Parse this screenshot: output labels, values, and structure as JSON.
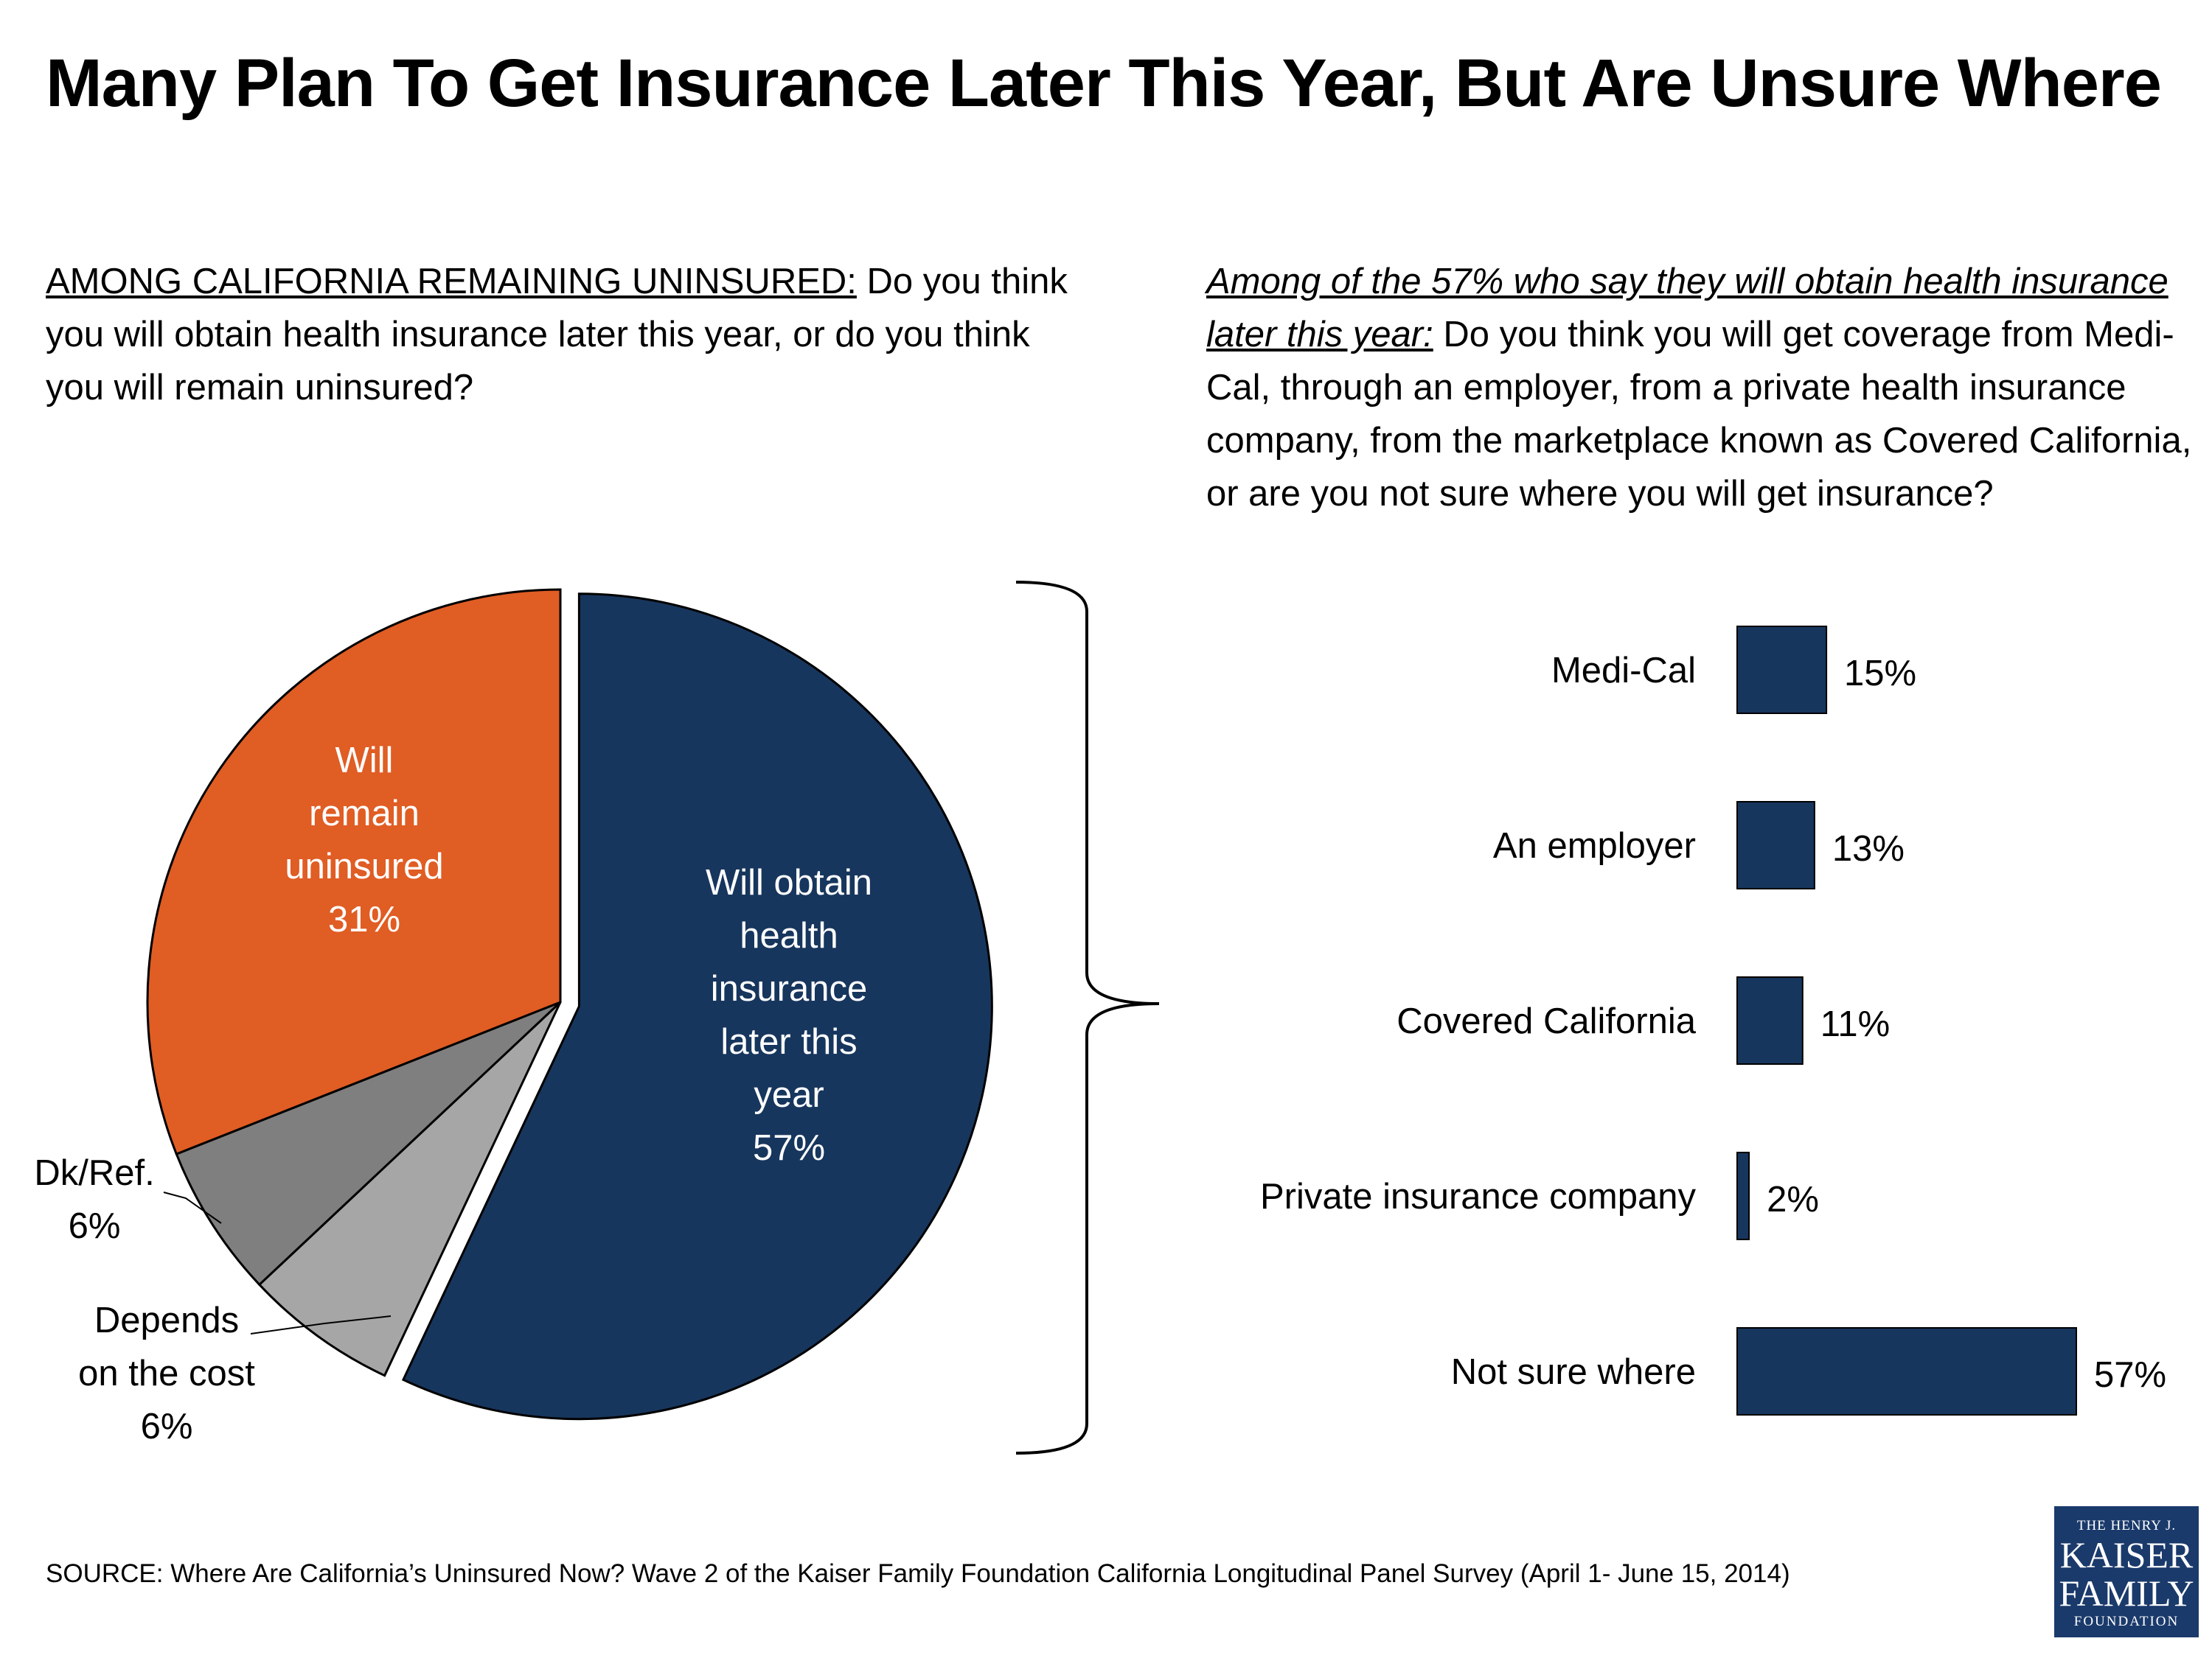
{
  "title": "Many Plan To Get Insurance Later This Year, But Are Unsure Where",
  "left_question": {
    "lead": "AMONG CALIFORNIA REMAINING UNINSURED:",
    "text": " Do you think you will obtain health insurance later this year, or do you think you will remain uninsured?"
  },
  "right_question": {
    "lead": "Among of the 57% who say they will obtain health insurance later this year:",
    "text": " Do you think you will get coverage from Medi-Cal, through an employer, from a private health insurance company, from the marketplace known as Covered California, or are you not sure where you will get insurance?"
  },
  "source": "SOURCE: Where Are California’s Uninsured Now? Wave 2 of the Kaiser Family Foundation California Longitudinal Panel Survey (April 1- June 15, 2014)",
  "logo": {
    "line1": "THE HENRY J.",
    "line2": "KAISER",
    "line3": "FAMILY",
    "line4": "FOUNDATION"
  },
  "colors": {
    "navy": "#17365d",
    "orange": "#e05d24",
    "dark_gray": "#7f7f7f",
    "light_gray": "#a6a6a6"
  },
  "chart_data": [
    {
      "type": "pie",
      "slices": [
        {
          "label_lines": [
            "Will obtain",
            "health",
            "insurance",
            "later this",
            "year",
            "57%"
          ],
          "value": 57,
          "color": "#17365d",
          "exploded": true
        },
        {
          "label_lines": [
            "Depends",
            "on the cost",
            "6%"
          ],
          "value": 6,
          "color": "#a6a6a6"
        },
        {
          "label_lines": [
            "Dk/Ref.",
            "6%"
          ],
          "value": 6,
          "color": "#7f7f7f"
        },
        {
          "label_lines": [
            "Will",
            "remain",
            "uninsured",
            "31%"
          ],
          "value": 31,
          "color": "#e05d24"
        }
      ]
    },
    {
      "type": "bar",
      "orientation": "horizontal",
      "categories": [
        "Medi-Cal",
        "An employer",
        "Covered California",
        "Private insurance company",
        "Not sure where"
      ],
      "values": [
        15,
        13,
        11,
        2,
        57
      ],
      "value_labels": [
        "15%",
        "13%",
        "11%",
        "2%",
        "57%"
      ],
      "color": "#17365d"
    }
  ]
}
